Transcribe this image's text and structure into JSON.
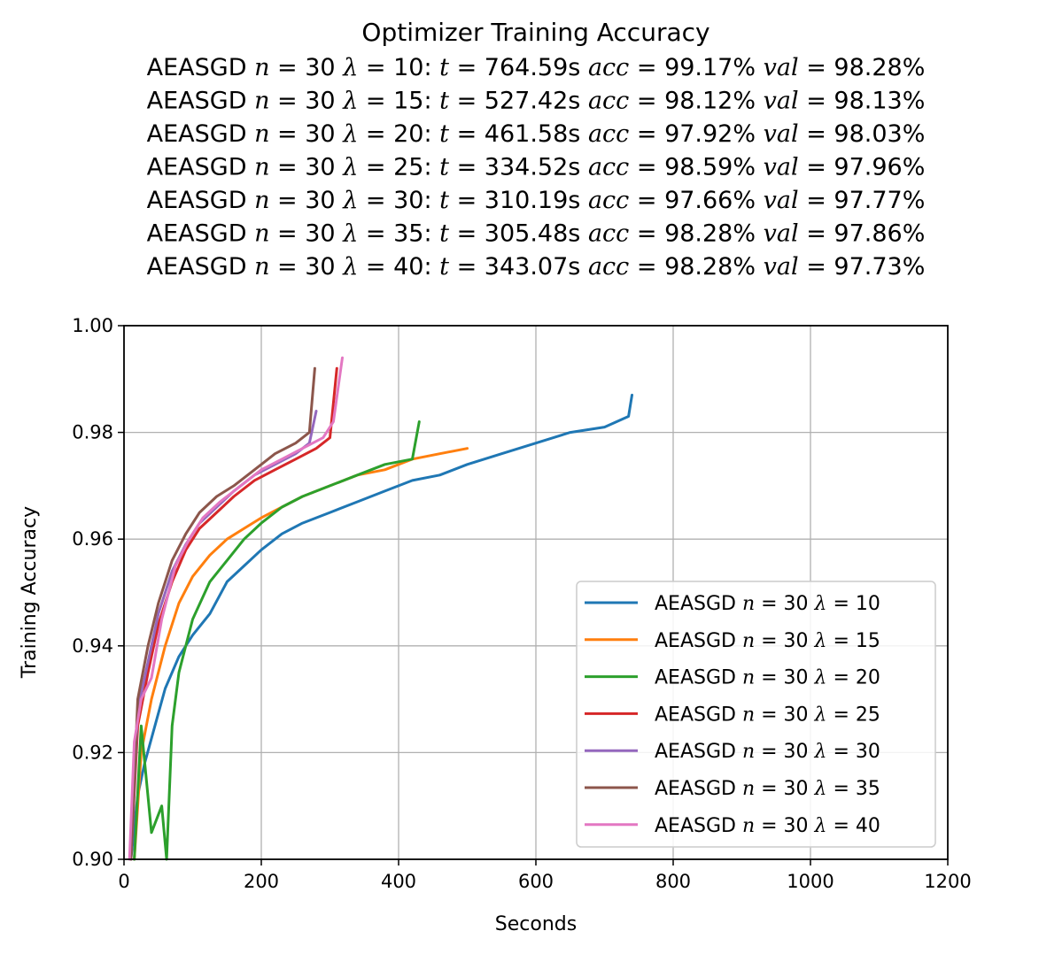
{
  "chart_data": {
    "type": "line",
    "title": "Optimizer Training Accuracy",
    "subtitle_lines": [
      {
        "opt": "AEASGD",
        "n": "30",
        "lambda": "10",
        "t": "764.59s",
        "acc": "99.17%",
        "val": "98.28%"
      },
      {
        "opt": "AEASGD",
        "n": "30",
        "lambda": "15",
        "t": "527.42s",
        "acc": "98.12%",
        "val": "98.13%"
      },
      {
        "opt": "AEASGD",
        "n": "30",
        "lambda": "20",
        "t": "461.58s",
        "acc": "97.92%",
        "val": "98.03%"
      },
      {
        "opt": "AEASGD",
        "n": "30",
        "lambda": "25",
        "t": "334.52s",
        "acc": "98.59%",
        "val": "97.96%"
      },
      {
        "opt": "AEASGD",
        "n": "30",
        "lambda": "30",
        "t": "310.19s",
        "acc": "97.66%",
        "val": "97.77%"
      },
      {
        "opt": "AEASGD",
        "n": "30",
        "lambda": "35",
        "t": "305.48s",
        "acc": "98.28%",
        "val": "97.86%"
      },
      {
        "opt": "AEASGD",
        "n": "30",
        "lambda": "40",
        "t": "343.07s",
        "acc": "98.28%",
        "val": "97.73%"
      }
    ],
    "xlabel": "Seconds",
    "ylabel": "Training Accuracy",
    "xlim": [
      0,
      1200
    ],
    "ylim": [
      0.9,
      1.0
    ],
    "xticks": [
      0,
      200,
      400,
      600,
      800,
      1000,
      1200
    ],
    "yticks": [
      0.9,
      0.92,
      0.94,
      0.96,
      0.98,
      1.0
    ],
    "grid": true,
    "legend_position": "lower-right",
    "series": [
      {
        "name": "AEASGD n=30 λ=10",
        "opt": "AEASGD",
        "n": "30",
        "lambda": "10",
        "color": "#1f77b4",
        "x": [
          10,
          20,
          30,
          45,
          60,
          80,
          100,
          125,
          150,
          175,
          200,
          230,
          260,
          300,
          340,
          380,
          420,
          460,
          500,
          550,
          600,
          650,
          700,
          735,
          740
        ],
        "y": [
          0.9,
          0.912,
          0.918,
          0.925,
          0.932,
          0.938,
          0.942,
          0.946,
          0.952,
          0.955,
          0.958,
          0.961,
          0.963,
          0.965,
          0.967,
          0.969,
          0.971,
          0.972,
          0.974,
          0.976,
          0.978,
          0.98,
          0.981,
          0.983,
          0.987
        ]
      },
      {
        "name": "AEASGD n=30 λ=15",
        "opt": "AEASGD",
        "n": "30",
        "lambda": "15",
        "color": "#ff7f0e",
        "x": [
          15,
          25,
          40,
          60,
          80,
          100,
          125,
          150,
          175,
          200,
          230,
          260,
          300,
          340,
          380,
          420,
          460,
          500
        ],
        "y": [
          0.9,
          0.92,
          0.93,
          0.94,
          0.948,
          0.953,
          0.957,
          0.96,
          0.962,
          0.964,
          0.966,
          0.968,
          0.97,
          0.972,
          0.973,
          0.975,
          0.976,
          0.977
        ]
      },
      {
        "name": "AEASGD n=30 λ=20",
        "opt": "AEASGD",
        "n": "30",
        "lambda": "20",
        "color": "#2ca02c",
        "x": [
          15,
          25,
          40,
          55,
          62,
          70,
          80,
          100,
          125,
          150,
          175,
          200,
          230,
          260,
          300,
          340,
          380,
          420,
          430
        ],
        "y": [
          0.9,
          0.925,
          0.905,
          0.91,
          0.9,
          0.925,
          0.935,
          0.945,
          0.952,
          0.956,
          0.96,
          0.963,
          0.966,
          0.968,
          0.97,
          0.972,
          0.974,
          0.975,
          0.982
        ]
      },
      {
        "name": "AEASGD n=30 λ=25",
        "opt": "AEASGD",
        "n": "30",
        "lambda": "25",
        "color": "#d62728",
        "x": [
          10,
          20,
          35,
          50,
          70,
          90,
          110,
          135,
          160,
          190,
          220,
          250,
          280,
          300,
          310
        ],
        "y": [
          0.9,
          0.925,
          0.935,
          0.944,
          0.952,
          0.958,
          0.962,
          0.965,
          0.968,
          0.971,
          0.973,
          0.975,
          0.977,
          0.979,
          0.992
        ]
      },
      {
        "name": "AEASGD n=30 λ=30",
        "opt": "AEASGD",
        "n": "30",
        "lambda": "30",
        "color": "#9467bd",
        "x": [
          10,
          20,
          35,
          50,
          70,
          90,
          110,
          135,
          160,
          190,
          220,
          250,
          270,
          280
        ],
        "y": [
          0.9,
          0.928,
          0.937,
          0.946,
          0.954,
          0.959,
          0.963,
          0.966,
          0.969,
          0.972,
          0.974,
          0.976,
          0.978,
          0.984
        ]
      },
      {
        "name": "AEASGD n=30 λ=35",
        "opt": "AEASGD",
        "n": "30",
        "lambda": "35",
        "color": "#8c564b",
        "x": [
          10,
          20,
          35,
          50,
          70,
          90,
          110,
          135,
          160,
          190,
          220,
          250,
          270,
          278
        ],
        "y": [
          0.9,
          0.93,
          0.94,
          0.948,
          0.956,
          0.961,
          0.965,
          0.968,
          0.97,
          0.973,
          0.976,
          0.978,
          0.98,
          0.992
        ]
      },
      {
        "name": "AEASGD n=30 λ=40",
        "opt": "AEASGD",
        "n": "30",
        "lambda": "40",
        "color": "#e377c2",
        "x": [
          8,
          15,
          25,
          40,
          55,
          75,
          95,
          115,
          140,
          170,
          200,
          230,
          260,
          290,
          305,
          318
        ],
        "y": [
          0.9,
          0.922,
          0.93,
          0.934,
          0.945,
          0.955,
          0.96,
          0.964,
          0.967,
          0.97,
          0.973,
          0.975,
          0.977,
          0.979,
          0.982,
          0.994
        ]
      }
    ]
  }
}
